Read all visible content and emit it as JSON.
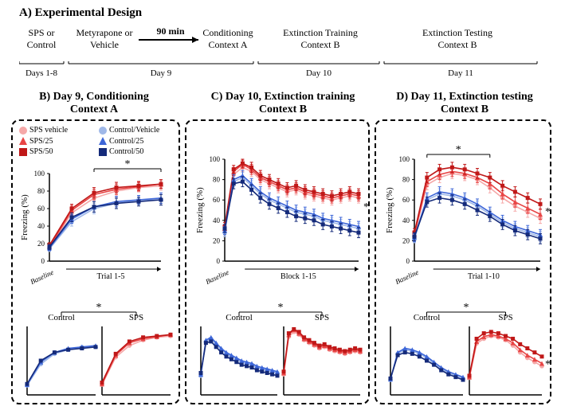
{
  "panelA": {
    "title": "A) Experimental Design",
    "stages": [
      {
        "top": "SPS or\nControl",
        "bottom": "Days 1-8"
      },
      {
        "top": "Metyrapone or\nVehicle"
      },
      {
        "arrow_label": "90 min"
      },
      {
        "top": "Conditioning\nContext A",
        "bottom": "Day 9"
      },
      {
        "top": "Extinction Training\nContext B",
        "bottom": "Day 10"
      },
      {
        "top": "Extinction Testing\nContext B",
        "bottom": "Day 11"
      }
    ]
  },
  "legend": {
    "items": [
      {
        "label": "SPS vehicle",
        "color": "#f5a8a8",
        "shape": "circle"
      },
      {
        "label": "SPS/25",
        "color": "#e84545",
        "shape": "triangle"
      },
      {
        "label": "SPS/50",
        "color": "#c01818",
        "shape": "square"
      },
      {
        "label": "Control/Vehicle",
        "color": "#9fb8e8",
        "shape": "circle"
      },
      {
        "label": "Control/25",
        "color": "#3d66d8",
        "shape": "triangle"
      },
      {
        "label": "Control/50",
        "color": "#142a7a",
        "shape": "square"
      }
    ]
  },
  "colors": {
    "sps_veh": "#f5a8a8",
    "sps_25": "#e84545",
    "sps_50": "#c01818",
    "ctrl_veh": "#9fb8e8",
    "ctrl_25": "#3d66d8",
    "ctrl_50": "#142a7a",
    "axis": "#000000",
    "text": "#000000",
    "bg": "#ffffff"
  },
  "common": {
    "ylabel": "Freezing (%)",
    "ylim": [
      0,
      100
    ],
    "ytick_step": 20,
    "label_fontsize": 12,
    "title_fontsize": 14,
    "line_width": 1.5,
    "marker_size": 4,
    "errbar_cap": 2
  },
  "panelB": {
    "title": "B) Day 9, Conditioning\nContext A",
    "xlabel": "Trial 1-5",
    "baseline_label": "Baseline",
    "sig": "*",
    "top": {
      "x": [
        0,
        1,
        2,
        3,
        4,
        5
      ],
      "series": {
        "sps_veh": {
          "y": [
            15,
            55,
            72,
            80,
            84,
            86
          ],
          "err": [
            3,
            5,
            6,
            6,
            5,
            5
          ]
        },
        "sps_25": {
          "y": [
            16,
            58,
            76,
            82,
            85,
            88
          ],
          "err": [
            3,
            5,
            6,
            6,
            5,
            5
          ]
        },
        "sps_50": {
          "y": [
            18,
            60,
            78,
            84,
            86,
            88
          ],
          "err": [
            3,
            5,
            6,
            6,
            5,
            5
          ]
        },
        "ctrl_veh": {
          "y": [
            14,
            45,
            60,
            66,
            70,
            70
          ],
          "err": [
            3,
            5,
            6,
            6,
            5,
            6
          ]
        },
        "ctrl_25": {
          "y": [
            15,
            48,
            62,
            68,
            70,
            72
          ],
          "err": [
            3,
            5,
            6,
            6,
            5,
            6
          ]
        },
        "ctrl_50": {
          "y": [
            16,
            50,
            62,
            66,
            68,
            70
          ],
          "err": [
            3,
            5,
            6,
            6,
            5,
            6
          ]
        }
      }
    },
    "bottom": {
      "labels": [
        "Control",
        "SPS"
      ],
      "control": {
        "ctrl_veh": [
          14,
          45,
          60,
          66,
          70,
          70
        ],
        "ctrl_25": [
          15,
          48,
          62,
          68,
          70,
          72
        ],
        "ctrl_50": [
          16,
          50,
          62,
          66,
          68,
          70
        ]
      },
      "sps": {
        "sps_veh": [
          15,
          55,
          72,
          80,
          84,
          86
        ],
        "sps_25": [
          16,
          58,
          76,
          82,
          85,
          88
        ],
        "sps_50": [
          18,
          60,
          78,
          84,
          86,
          88
        ]
      }
    }
  },
  "panelC": {
    "title": "C) Day 10, Extinction training\nContext B",
    "xlabel": "Block 1-15",
    "baseline_label": "Baseline",
    "sig": "*",
    "top": {
      "x": [
        0,
        1,
        2,
        3,
        4,
        5,
        6,
        7,
        8,
        9,
        10,
        11,
        12,
        13,
        14,
        15
      ],
      "series": {
        "sps_veh": {
          "y": [
            30,
            85,
            92,
            88,
            80,
            76,
            72,
            68,
            70,
            66,
            64,
            62,
            60,
            62,
            64,
            62
          ],
          "err": [
            4,
            4,
            4,
            5,
            5,
            5,
            5,
            5,
            5,
            5,
            5,
            5,
            5,
            5,
            5,
            5
          ]
        },
        "sps_25": {
          "y": [
            32,
            88,
            95,
            90,
            82,
            78,
            74,
            70,
            72,
            68,
            66,
            64,
            62,
            64,
            66,
            64
          ],
          "err": [
            4,
            4,
            4,
            5,
            5,
            5,
            5,
            5,
            5,
            5,
            5,
            5,
            5,
            5,
            5,
            5
          ]
        },
        "sps_50": {
          "y": [
            34,
            90,
            96,
            92,
            84,
            80,
            76,
            72,
            74,
            70,
            68,
            66,
            64,
            66,
            68,
            66
          ],
          "err": [
            4,
            4,
            4,
            5,
            5,
            5,
            5,
            5,
            5,
            5,
            5,
            5,
            5,
            5,
            5,
            5
          ]
        },
        "ctrl_veh": {
          "y": [
            28,
            78,
            82,
            74,
            66,
            60,
            56,
            52,
            48,
            46,
            44,
            40,
            38,
            36,
            34,
            32
          ],
          "err": [
            4,
            5,
            5,
            5,
            5,
            5,
            5,
            5,
            5,
            5,
            5,
            5,
            5,
            5,
            5,
            5
          ]
        },
        "ctrl_25": {
          "y": [
            30,
            80,
            84,
            76,
            68,
            62,
            58,
            54,
            50,
            48,
            46,
            42,
            40,
            38,
            36,
            34
          ],
          "err": [
            4,
            5,
            5,
            5,
            5,
            5,
            5,
            5,
            5,
            5,
            5,
            5,
            5,
            5,
            5,
            5
          ]
        },
        "ctrl_50": {
          "y": [
            32,
            76,
            78,
            70,
            62,
            56,
            52,
            48,
            44,
            42,
            40,
            36,
            34,
            32,
            30,
            28
          ],
          "err": [
            4,
            5,
            5,
            5,
            5,
            5,
            5,
            5,
            5,
            5,
            5,
            5,
            5,
            5,
            5,
            5
          ]
        }
      }
    },
    "bottom": {
      "labels": [
        "Control",
        "SPS"
      ],
      "control": {
        "ctrl_veh": [
          28,
          78,
          82,
          74,
          66,
          60,
          56,
          52,
          48,
          46,
          44,
          40,
          38,
          36,
          34,
          32
        ],
        "ctrl_25": [
          30,
          80,
          84,
          76,
          68,
          62,
          58,
          54,
          50,
          48,
          46,
          42,
          40,
          38,
          36,
          34
        ],
        "ctrl_50": [
          32,
          76,
          78,
          70,
          62,
          56,
          52,
          48,
          44,
          42,
          40,
          36,
          34,
          32,
          30,
          28
        ]
      },
      "sps": {
        "sps_veh": [
          30,
          85,
          92,
          88,
          80,
          76,
          72,
          68,
          70,
          66,
          64,
          62,
          60,
          62,
          64,
          62
        ],
        "sps_25": [
          32,
          88,
          95,
          90,
          82,
          78,
          74,
          70,
          72,
          68,
          66,
          64,
          62,
          64,
          66,
          64
        ],
        "sps_50": [
          34,
          90,
          96,
          92,
          84,
          80,
          76,
          72,
          74,
          70,
          68,
          66,
          64,
          66,
          68,
          66
        ]
      }
    }
  },
  "panelD": {
    "title": "D) Day 11, Extinction testing\nContext B",
    "xlabel": "Trial 1-10",
    "baseline_label": "Baseline",
    "sig": "*",
    "top": {
      "x": [
        0,
        1,
        2,
        3,
        4,
        5,
        6,
        7,
        8,
        9,
        10
      ],
      "series": {
        "sps_veh": {
          "y": [
            25,
            75,
            82,
            86,
            84,
            80,
            72,
            62,
            54,
            48,
            42
          ],
          "err": [
            4,
            5,
            5,
            5,
            5,
            5,
            5,
            5,
            5,
            5,
            5
          ]
        },
        "sps_25": {
          "y": [
            26,
            78,
            85,
            88,
            86,
            82,
            76,
            66,
            58,
            52,
            46
          ],
          "err": [
            4,
            5,
            5,
            5,
            5,
            5,
            5,
            5,
            5,
            5,
            5
          ]
        },
        "sps_50": {
          "y": [
            28,
            82,
            90,
            92,
            90,
            86,
            82,
            74,
            68,
            62,
            56
          ],
          "err": [
            4,
            5,
            5,
            5,
            5,
            5,
            5,
            5,
            5,
            5,
            5
          ]
        },
        "ctrl_veh": {
          "y": [
            22,
            60,
            66,
            64,
            60,
            54,
            46,
            38,
            32,
            28,
            24
          ],
          "err": [
            4,
            5,
            5,
            5,
            5,
            5,
            5,
            5,
            5,
            5,
            5
          ]
        },
        "ctrl_25": {
          "y": [
            23,
            62,
            68,
            66,
            62,
            56,
            48,
            40,
            34,
            30,
            26
          ],
          "err": [
            4,
            5,
            5,
            5,
            5,
            5,
            5,
            5,
            5,
            5,
            5
          ]
        },
        "ctrl_50": {
          "y": [
            24,
            58,
            62,
            60,
            56,
            50,
            44,
            36,
            30,
            26,
            22
          ],
          "err": [
            4,
            5,
            5,
            5,
            5,
            5,
            5,
            5,
            5,
            5,
            5
          ]
        }
      }
    },
    "bottom": {
      "labels": [
        "Control",
        "SPS"
      ],
      "control": {
        "ctrl_veh": [
          22,
          60,
          66,
          64,
          60,
          54,
          46,
          38,
          32,
          28,
          24
        ],
        "ctrl_25": [
          23,
          62,
          68,
          66,
          62,
          56,
          48,
          40,
          34,
          30,
          26
        ],
        "ctrl_50": [
          24,
          58,
          62,
          60,
          56,
          50,
          44,
          36,
          30,
          26,
          22
        ]
      },
      "sps": {
        "sps_veh": [
          25,
          75,
          82,
          86,
          84,
          80,
          72,
          62,
          54,
          48,
          42
        ],
        "sps_25": [
          26,
          78,
          85,
          88,
          86,
          82,
          76,
          66,
          58,
          52,
          46
        ],
        "sps_50": [
          28,
          82,
          90,
          92,
          90,
          86,
          82,
          74,
          68,
          62,
          56
        ]
      }
    }
  }
}
